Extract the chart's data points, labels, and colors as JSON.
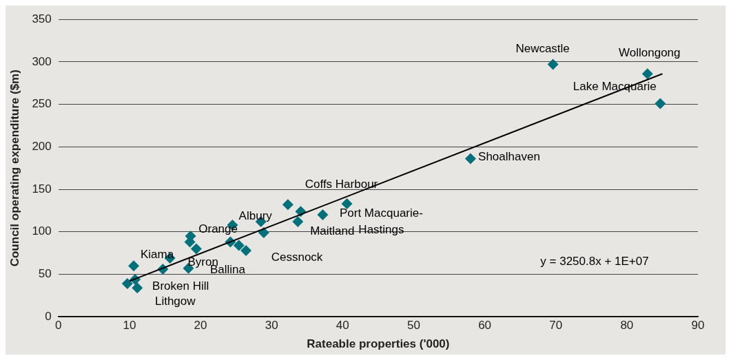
{
  "chart_data": {
    "type": "scatter",
    "xlabel": "Rateable properties ('000)",
    "ylabel": "Council operating expenditure ($m)",
    "xlim": [
      0,
      90
    ],
    "xticks": [
      0,
      10,
      20,
      30,
      40,
      50,
      60,
      70,
      80,
      90
    ],
    "ylim": [
      0,
      350
    ],
    "yticks": [
      0,
      50,
      100,
      150,
      200,
      250,
      300,
      350
    ],
    "grid": "y",
    "marker": "diamond",
    "legend": false,
    "series": [
      {
        "color": "#00707a",
        "x": [
          9.7,
          11.1,
          10.8,
          10.6,
          14.7,
          15.7,
          18.3,
          18.6,
          18.5,
          19.4,
          24.5,
          24.2,
          25.4,
          26.4,
          28.5,
          28.9,
          32.3,
          34.1,
          33.7,
          37.2,
          40.6,
          58.0,
          69.6,
          82.9,
          84.7
        ],
        "values": [
          39,
          34,
          44,
          60,
          56,
          69,
          57,
          95,
          88,
          80,
          108,
          88,
          84,
          78,
          112,
          99,
          132,
          124,
          112,
          120,
          133,
          186,
          297,
          286,
          251
        ]
      },
      {
        "type": "line",
        "marker": "none",
        "color": "#000000",
        "x": [
          10,
          85
        ],
        "values": [
          42,
          286
        ]
      }
    ],
    "annotations": [
      {
        "text": "Newcastle",
        "x": 69.6,
        "y": 297
      },
      {
        "text": "Wollongong",
        "x": 82.9,
        "y": 286
      },
      {
        "text": "Lake Macquarie",
        "x": 84.7,
        "y": 251
      },
      {
        "text": "Shoalhaven",
        "x": 58.0,
        "y": 186
      },
      {
        "text": "Coffs Harbour",
        "x": 40.6,
        "y": 133
      },
      {
        "text": "Port Macquarie-\nHastings",
        "x": 37.2,
        "y": 120
      },
      {
        "text": "Maitland",
        "x": 33.7,
        "y": 112
      },
      {
        "text": "Albury",
        "x": 28.5,
        "y": 112
      },
      {
        "text": "Orange",
        "x": 18.6,
        "y": 95
      },
      {
        "text": "Cessnock",
        "x": 26.4,
        "y": 78
      },
      {
        "text": "Kiama",
        "x": 10.6,
        "y": 60
      },
      {
        "text": "Byron",
        "x": 15.7,
        "y": 69
      },
      {
        "text": "Ballina",
        "x": 18.3,
        "y": 57
      },
      {
        "text": "Broken Hill",
        "x": 10.8,
        "y": 44
      },
      {
        "text": "Lithgow",
        "x": 11.1,
        "y": 34
      },
      "y = 3250.8x + 1E+07"
    ]
  }
}
